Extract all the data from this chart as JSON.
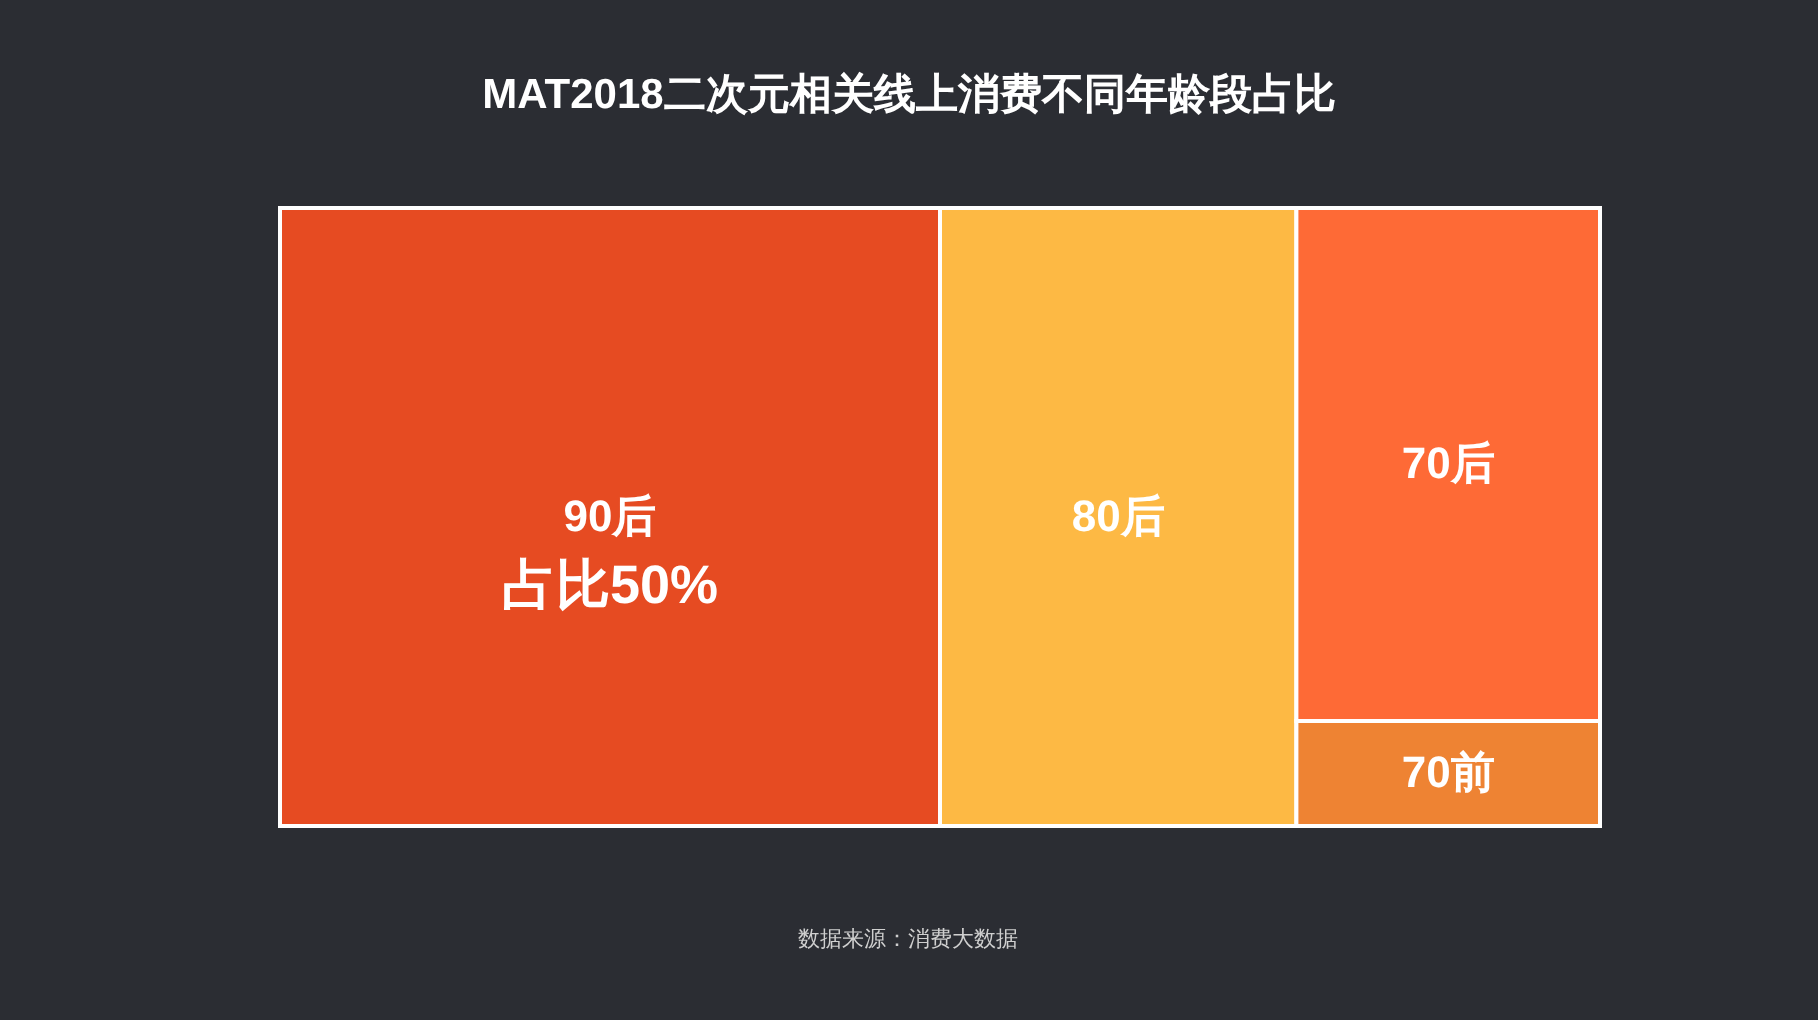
{
  "chart_data": {
    "type": "other",
    "title": "MAT2018二次元相关线上消费不同年龄段占比",
    "categories": [
      "90后",
      "80后",
      "70后",
      "70前"
    ],
    "values": [
      50,
      null,
      null,
      null
    ],
    "value_labels": [
      "占比50%",
      null,
      null,
      null
    ],
    "colors": [
      "#e64b22",
      "#fdb944",
      "#fe6a36",
      "#ee8333"
    ],
    "annotations": [
      "数据来源：消费大数据"
    ]
  }
}
